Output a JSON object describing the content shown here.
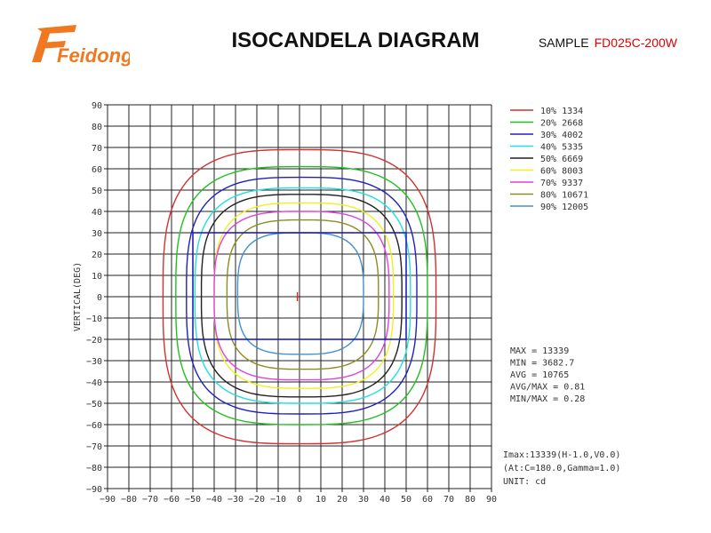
{
  "header": {
    "brand": "Feidong",
    "title": "ISOCANDELA DIAGRAM",
    "sample_label": "SAMPLE",
    "sample_model": "FD025C-200W"
  },
  "colors": {
    "brand_orange": "#f07820",
    "model_red": "#e00000"
  },
  "chart_data": {
    "type": "isocandela",
    "ylabel": "VERTICAL(DEG)",
    "xlabel": "",
    "xlim": [
      -90,
      90
    ],
    "ylim": [
      -90,
      90
    ],
    "xticks": [
      -90,
      -80,
      -70,
      -60,
      -50,
      -40,
      -30,
      -20,
      -10,
      0,
      10,
      20,
      30,
      40,
      50,
      60,
      70,
      80,
      90
    ],
    "yticks": [
      90,
      80,
      70,
      60,
      50,
      40,
      30,
      20,
      10,
      0,
      -10,
      -20,
      -30,
      -40,
      -50,
      -60,
      -70,
      -80,
      -90
    ],
    "grid": true,
    "legend_position": "top-right",
    "series": [
      {
        "name": "10% 1334",
        "color": "#d43030",
        "h": [
          -64,
          64
        ],
        "v": [
          -69,
          69
        ]
      },
      {
        "name": "20% 2668",
        "color": "#20c020",
        "h": [
          -58,
          60
        ],
        "v": [
          -60,
          61
        ]
      },
      {
        "name": "30% 4002",
        "color": "#2020c0",
        "h": [
          -53,
          55
        ],
        "v": [
          -55,
          56
        ]
      },
      {
        "name": "40% 5335",
        "color": "#20e0e0",
        "h": [
          -49,
          52
        ],
        "v": [
          -50,
          51
        ]
      },
      {
        "name": "50% 6669",
        "color": "#202020",
        "h": [
          -46,
          48
        ],
        "v": [
          -47,
          48
        ]
      },
      {
        "name": "60% 8003",
        "color": "#f0f020",
        "h": [
          -40,
          44
        ],
        "v": [
          -43,
          44
        ]
      },
      {
        "name": "70% 9337",
        "color": "#e040e0",
        "h": [
          -40,
          42
        ],
        "v": [
          -39,
          40
        ]
      },
      {
        "name": "80% 10671",
        "color": "#8c8c20",
        "h": [
          -34,
          37
        ],
        "v": [
          -34,
          36
        ]
      },
      {
        "name": "90% 12005",
        "color": "#4090d0",
        "h": [
          -29,
          30
        ],
        "v": [
          -27,
          30
        ]
      }
    ],
    "stats": [
      "MAX = 13339",
      "MIN = 3682.7",
      "AVG = 10765",
      "AVG/MAX = 0.81",
      "MIN/MAX = 0.28"
    ],
    "imax_info": [
      "Imax:13339(H-1.0,V0.0)",
      " (At:C=180.0,Gamma=1.0)",
      "UNIT: cd"
    ],
    "target_rect": {
      "h": [
        -50,
        50
      ],
      "v": [
        -20,
        30
      ],
      "color": "#2020c0"
    },
    "max_marker": {
      "h": -1,
      "v": 0,
      "color": "#e02020"
    }
  }
}
